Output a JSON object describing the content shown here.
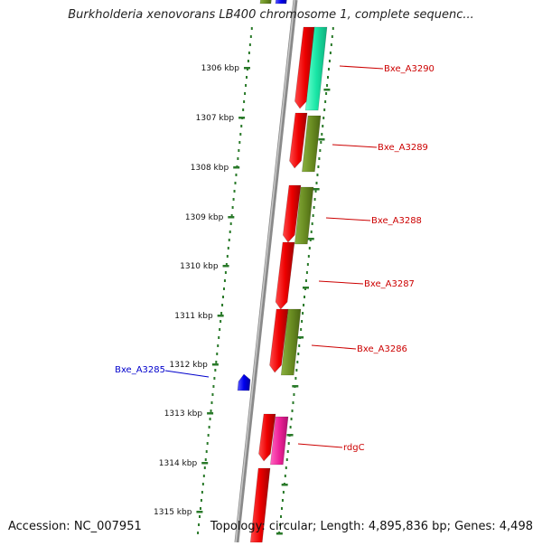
{
  "title": "Burkholderia xenovorans LB400 chromosome 1, complete sequenc...",
  "accession": "Accession: NC_007951",
  "topology": "Topology: circular; Length: 4,895,836 bp; Genes: 4,498",
  "kbp_labels": [
    "1306 kbp",
    "1307 kbp",
    "1308 kbp",
    "1309 kbp",
    "1310 kbp",
    "1311 kbp",
    "1312 kbp",
    "1313 kbp",
    "1314 kbp",
    "1315 kbp"
  ],
  "genes": [
    {
      "name": "Bxe_A3290",
      "color": "#cc0000"
    },
    {
      "name": "Bxe_A3289",
      "color": "#cc0000"
    },
    {
      "name": "Bxe_A3288",
      "color": "#cc0000"
    },
    {
      "name": "Bxe_A3287",
      "color": "#cc0000"
    },
    {
      "name": "Bxe_A3286",
      "color": "#cc0000"
    },
    {
      "name": "rdgC",
      "color": "#cc0000"
    },
    {
      "name": "Bxe_A3285",
      "color": "#0000cc"
    }
  ],
  "colors": {
    "backbone": "#8a8a8a",
    "tick_dots": "#2a7a2a",
    "forward_gene": "#ee1111",
    "olive_gene": "#6b8e23",
    "teal_gene": "#19e6a6",
    "magenta_gene": "#ee2299",
    "blue_gene": "#0000ee"
  }
}
